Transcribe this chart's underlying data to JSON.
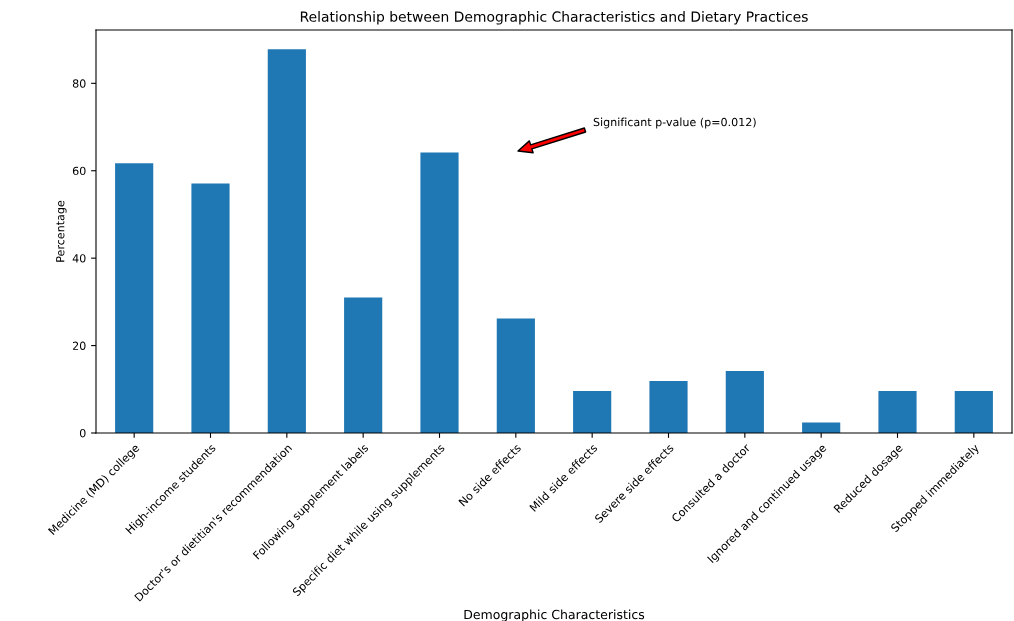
{
  "chart_data": {
    "type": "bar",
    "title": "Relationship between Demographic Characteristics and Dietary Practices",
    "xlabel": "Demographic Characteristics",
    "ylabel": "Percentage",
    "categories": [
      "Medicine (MD) college",
      "High-income students",
      "Doctor's or dietitian's recommendation",
      "Following supplement labels",
      "Specific diet while using supplements",
      "No side effects",
      "Mild side effects",
      "Severe side effects",
      "Consulted a doctor",
      "Ignored and continued usage",
      "Reduced dosage",
      "Stopped immediately"
    ],
    "values": [
      61.7,
      57.1,
      87.8,
      31.0,
      64.2,
      26.2,
      9.6,
      11.9,
      14.2,
      2.4,
      9.6,
      9.6
    ],
    "color": "#1f77b4",
    "ylim": [
      0,
      92.2
    ],
    "yticks": [
      0,
      20,
      40,
      60,
      80
    ],
    "grid": false,
    "legend": false,
    "annotations": [
      "Significant p-value (p=0.012)"
    ]
  }
}
